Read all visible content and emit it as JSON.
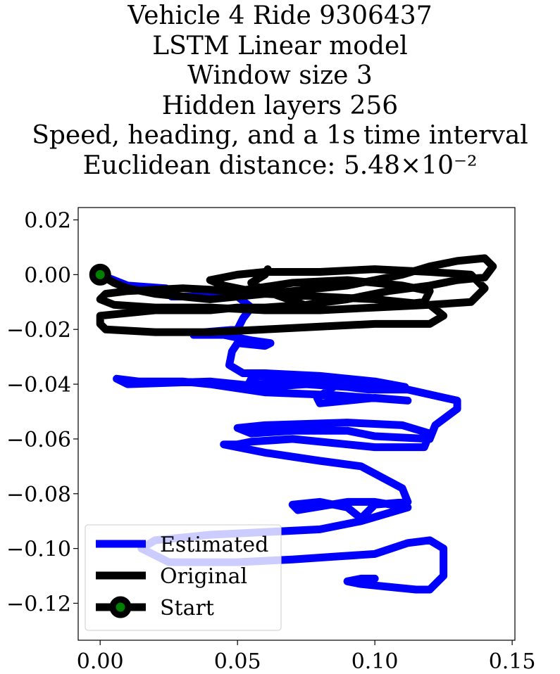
{
  "title_lines": [
    "Vehicle 4 Ride 9306437",
    "LSTM Linear model",
    "Window size 3",
    "Hidden layers 256",
    "Speed, heading, and a 1s time interval",
    "Euclidean distance: 5.48×10⁻²"
  ],
  "chart_data": {
    "type": "line",
    "title": "Vehicle 4 Ride 9306437 / LSTM Linear model / Window size 3 / Hidden layers 256 / Speed, heading, and a 1s time interval / Euclidean distance: 5.48×10⁻²",
    "xlabel": "",
    "ylabel": "",
    "xlim": [
      -0.008,
      0.151
    ],
    "ylim": [
      -0.1335,
      0.0245
    ],
    "xticks": [
      0.0,
      0.05,
      0.1,
      0.15
    ],
    "xtick_labels": [
      "0.00",
      "0.05",
      "0.10",
      "0.15"
    ],
    "yticks": [
      0.02,
      0.0,
      -0.02,
      -0.04,
      -0.06,
      -0.08,
      -0.1,
      -0.12
    ],
    "ytick_labels": [
      "0.02",
      "0.00",
      "−0.02",
      "−0.04",
      "−0.06",
      "−0.08",
      "−0.10",
      "−0.12"
    ],
    "grid": false,
    "legend_position": "lower-left",
    "series": [
      {
        "name": "Estimated",
        "color": "#0000ff",
        "x": [
          0.0,
          0.01,
          0.024,
          0.026,
          0.05,
          0.055,
          0.052,
          0.05,
          0.038,
          0.034,
          0.045,
          0.055,
          0.062,
          0.06,
          0.05,
          0.048,
          0.047,
          0.052,
          0.06,
          0.08,
          0.1,
          0.111,
          0.09,
          0.08,
          0.065,
          0.058,
          0.055,
          0.054,
          0.08,
          0.088,
          0.079,
          0.08,
          0.1,
          0.112,
          0.085,
          0.06,
          0.04,
          0.03,
          0.014,
          0.006,
          0.01,
          0.04,
          0.06,
          0.075,
          0.09,
          0.098,
          0.112,
          0.13,
          0.13,
          0.122,
          0.12,
          0.1,
          0.09,
          0.07,
          0.055,
          0.05,
          0.06,
          0.09,
          0.11,
          0.12,
          0.118,
          0.1,
          0.09,
          0.07,
          0.055,
          0.05,
          0.045,
          0.06,
          0.08,
          0.095,
          0.11,
          0.112,
          0.1,
          0.095,
          0.09,
          0.08,
          0.07,
          0.072,
          0.09,
          0.1,
          0.112,
          0.095,
          0.08,
          0.06,
          0.04,
          0.02,
          0.015,
          0.025,
          0.05,
          0.07,
          0.085,
          0.1,
          0.112,
          0.12,
          0.125,
          0.125,
          0.12,
          0.115,
          0.105,
          0.095,
          0.09,
          0.095,
          0.1
        ],
        "y": [
          0.0,
          -0.004,
          -0.005,
          -0.008,
          -0.008,
          -0.012,
          -0.016,
          -0.02,
          -0.021,
          -0.022,
          -0.022,
          -0.024,
          -0.025,
          -0.026,
          -0.025,
          -0.028,
          -0.033,
          -0.036,
          -0.036,
          -0.037,
          -0.039,
          -0.041,
          -0.039,
          -0.038,
          -0.038,
          -0.037,
          -0.038,
          -0.04,
          -0.04,
          -0.039,
          -0.045,
          -0.047,
          -0.045,
          -0.046,
          -0.044,
          -0.043,
          -0.04,
          -0.039,
          -0.039,
          -0.038,
          -0.04,
          -0.039,
          -0.041,
          -0.04,
          -0.041,
          -0.042,
          -0.042,
          -0.046,
          -0.049,
          -0.055,
          -0.06,
          -0.059,
          -0.057,
          -0.057,
          -0.058,
          -0.056,
          -0.055,
          -0.054,
          -0.055,
          -0.058,
          -0.063,
          -0.063,
          -0.062,
          -0.06,
          -0.061,
          -0.062,
          -0.062,
          -0.065,
          -0.068,
          -0.07,
          -0.078,
          -0.083,
          -0.084,
          -0.089,
          -0.085,
          -0.083,
          -0.084,
          -0.086,
          -0.083,
          -0.083,
          -0.085,
          -0.09,
          -0.093,
          -0.094,
          -0.095,
          -0.097,
          -0.1,
          -0.105,
          -0.105,
          -0.104,
          -0.103,
          -0.102,
          -0.098,
          -0.097,
          -0.1,
          -0.11,
          -0.115,
          -0.115,
          -0.114,
          -0.113,
          -0.112,
          -0.111,
          -0.111
        ]
      },
      {
        "name": "Original",
        "color": "#000000",
        "x": [
          0.0,
          0.005,
          0.01,
          0.02,
          0.03,
          0.04,
          0.05,
          0.06,
          0.07,
          0.08,
          0.09,
          0.1,
          0.11,
          0.12,
          0.13,
          0.14,
          0.143,
          0.14,
          0.13,
          0.12,
          0.105,
          0.09,
          0.075,
          0.06,
          0.05,
          0.04,
          0.03,
          0.02,
          0.01,
          0.0,
          0.0,
          0.002,
          0.02,
          0.04,
          0.06,
          0.08,
          0.1,
          0.12,
          0.125,
          0.12,
          0.1,
          0.08,
          0.06,
          0.045,
          0.04,
          0.05,
          0.06,
          0.08,
          0.1,
          0.12,
          0.135,
          0.14,
          0.135,
          0.12,
          0.1,
          0.08,
          0.06,
          0.04,
          0.02,
          0.005,
          0.0,
          0.002,
          0.01,
          0.03,
          0.05,
          0.07,
          0.09,
          0.11,
          0.12,
          0.118,
          0.1,
          0.08,
          0.06,
          0.055,
          0.06,
          0.061
        ],
        "y": [
          0.0,
          -0.003,
          -0.005,
          -0.007,
          -0.008,
          -0.009,
          -0.008,
          -0.007,
          -0.006,
          -0.005,
          -0.004,
          -0.002,
          0.0,
          0.003,
          0.005,
          0.006,
          0.003,
          -0.001,
          -0.002,
          -0.004,
          -0.006,
          -0.009,
          -0.011,
          -0.012,
          -0.012,
          -0.013,
          -0.013,
          -0.013,
          -0.014,
          -0.015,
          -0.018,
          -0.02,
          -0.021,
          -0.021,
          -0.02,
          -0.019,
          -0.018,
          -0.018,
          -0.015,
          -0.011,
          -0.009,
          -0.008,
          -0.007,
          -0.004,
          -0.002,
          0.0,
          0.001,
          0.001,
          0.002,
          0.001,
          0.0,
          -0.005,
          -0.01,
          -0.011,
          -0.012,
          -0.013,
          -0.013,
          -0.012,
          -0.012,
          -0.011,
          -0.009,
          -0.007,
          -0.006,
          -0.005,
          -0.006,
          -0.003,
          -0.002,
          -0.004,
          -0.006,
          -0.01,
          -0.012,
          -0.013,
          -0.006,
          -0.003,
          0.0,
          0.002
        ]
      }
    ],
    "markers": [
      {
        "name": "Start",
        "x": 0.0,
        "y": 0.0,
        "edge_color": "#000000",
        "face_color": "#008000"
      }
    ],
    "legend": [
      {
        "label": "Estimated",
        "color": "#0000ff",
        "marker": false
      },
      {
        "label": "Original",
        "color": "#000000",
        "marker": false
      },
      {
        "label": "Start",
        "color": "#000000",
        "marker": true,
        "marker_face": "#008000"
      }
    ]
  }
}
